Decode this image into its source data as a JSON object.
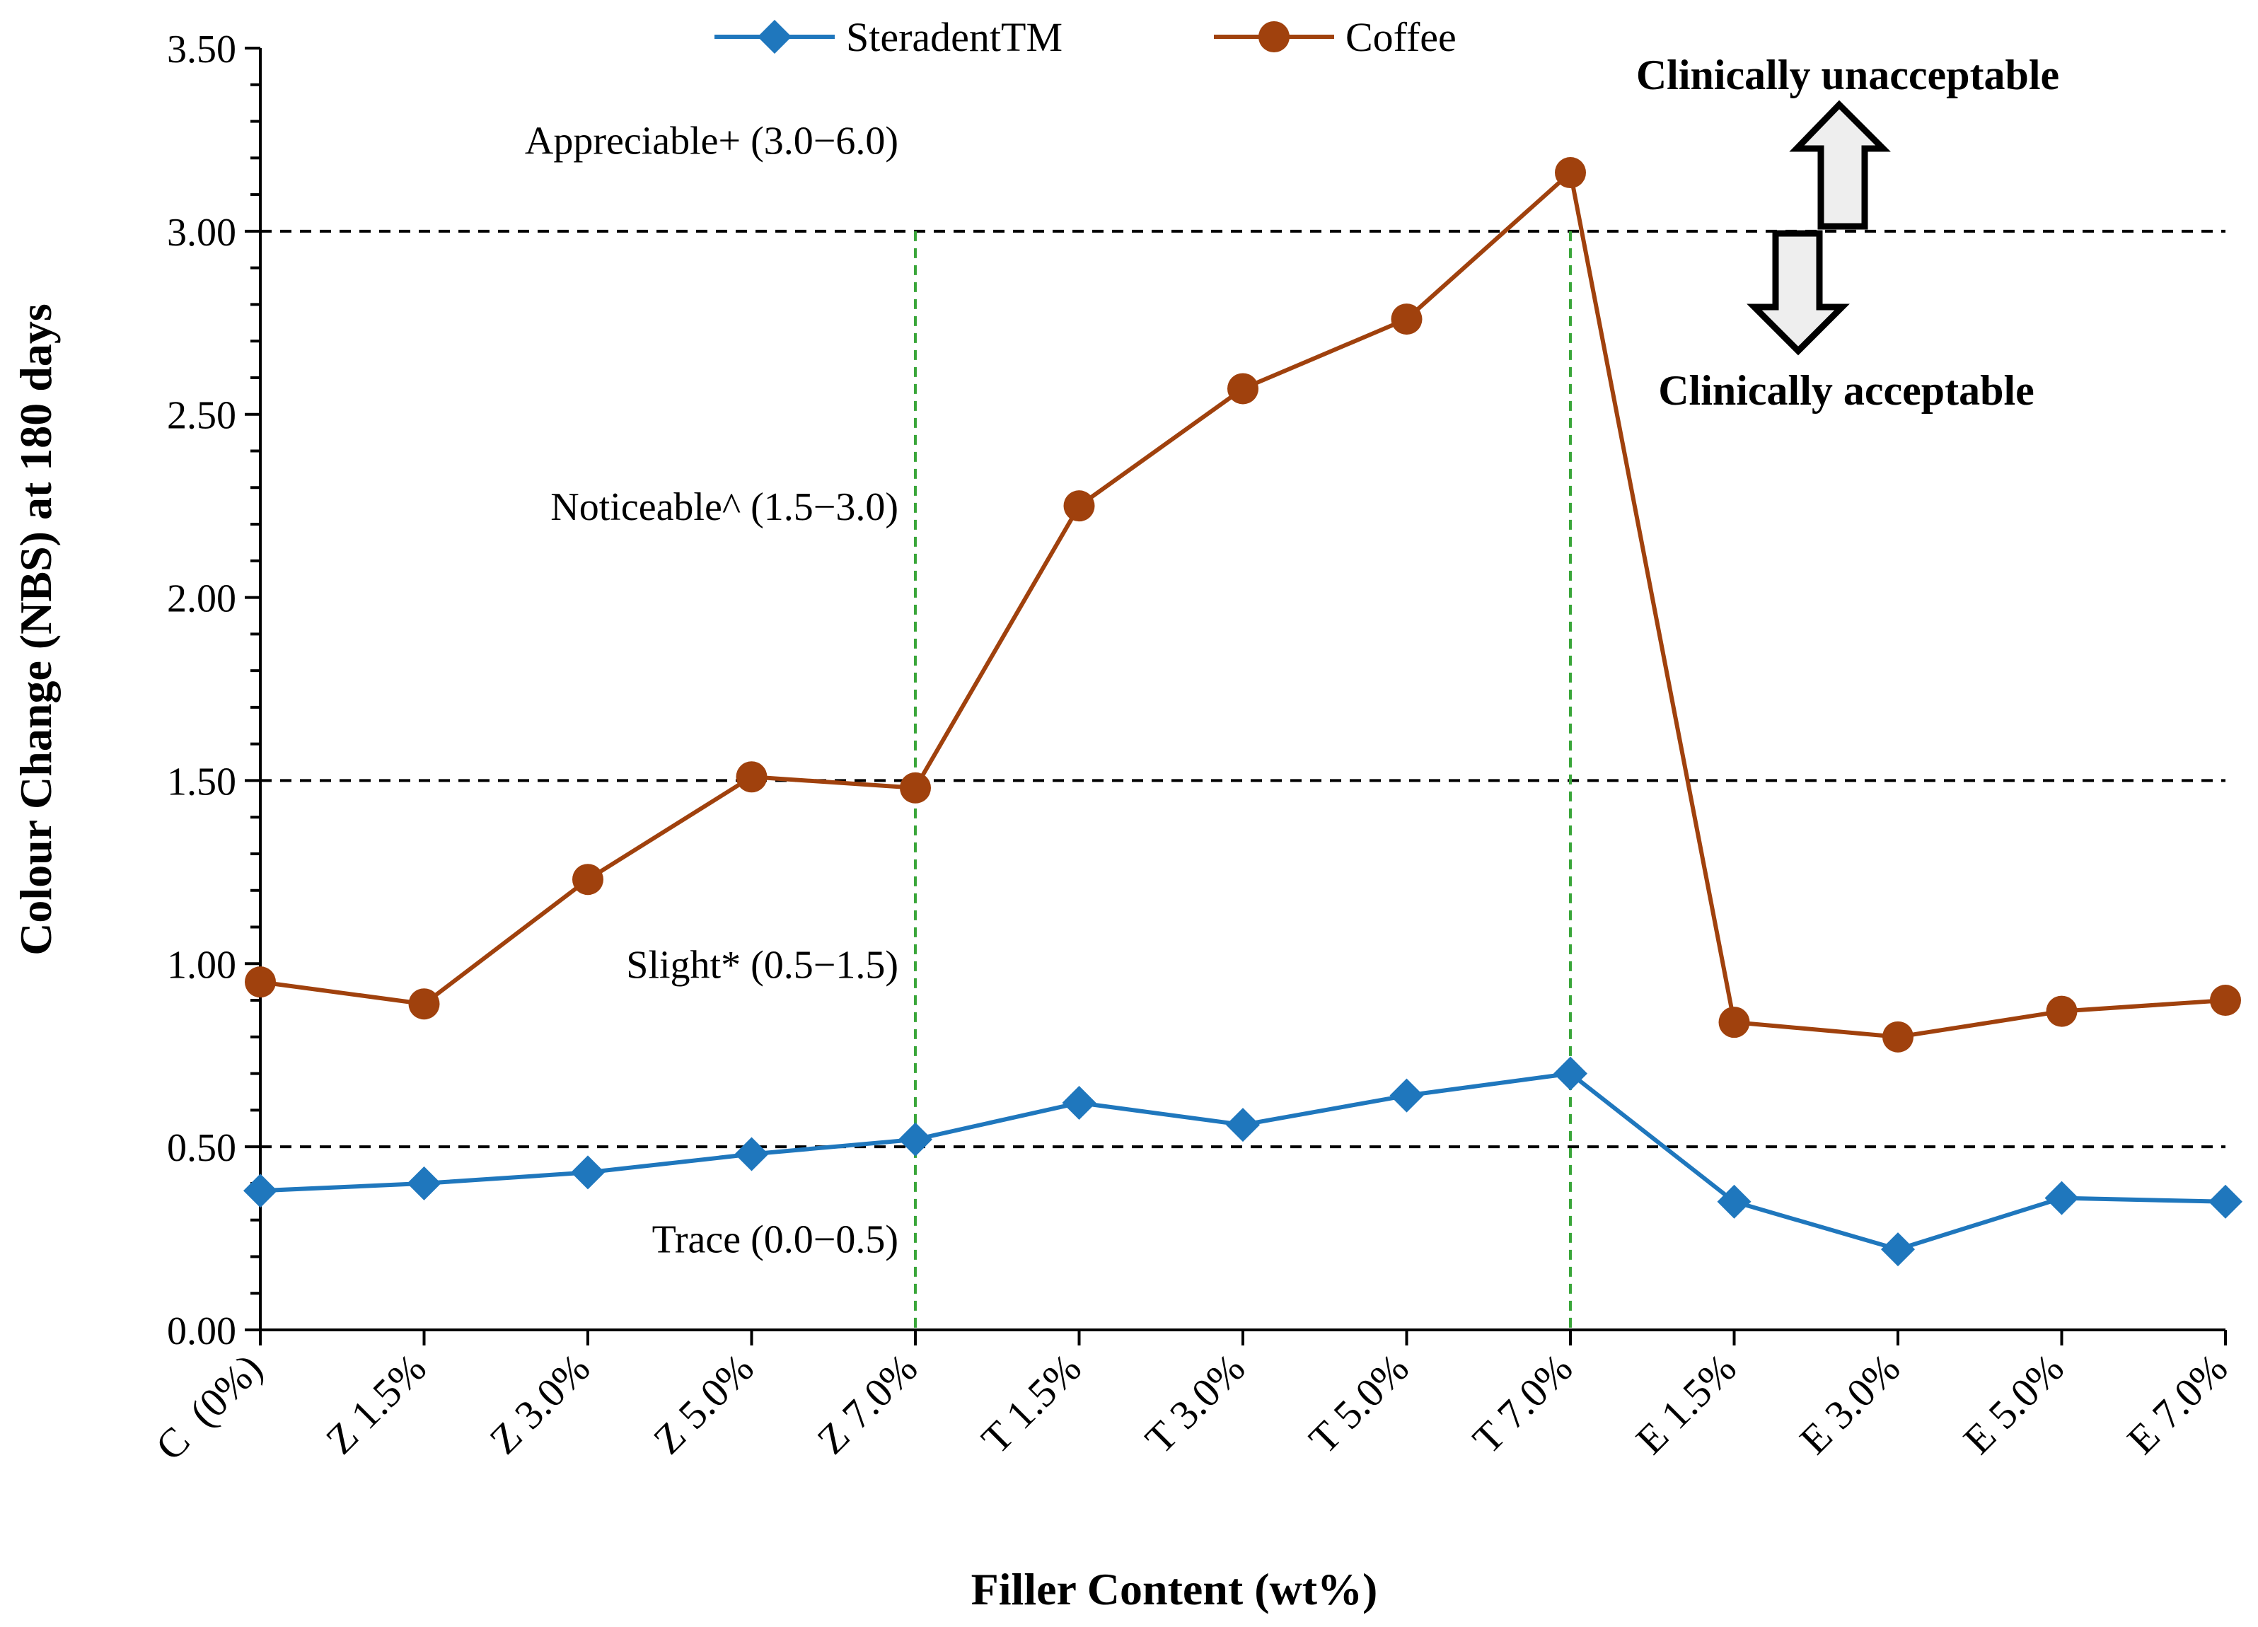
{
  "chart_data": {
    "type": "line",
    "categories": [
      "C (0%)",
      "Z 1.5%",
      "Z 3.0%",
      "Z 5.0%",
      "Z 7.0%",
      "T 1.5%",
      "T 3.0%",
      "T 5.0%",
      "T 7.0%",
      "E 1.5%",
      "E 3.0%",
      "E 5.0%",
      "E 7.0%"
    ],
    "series": [
      {
        "name": "SteradentTM",
        "color": "#1f77bd",
        "marker": "diamond",
        "values": [
          0.38,
          0.4,
          0.43,
          0.48,
          0.52,
          0.62,
          0.56,
          0.64,
          0.7,
          0.35,
          0.22,
          0.36,
          0.35
        ]
      },
      {
        "name": "Coffee",
        "color": "#a0410d",
        "marker": "circle",
        "values": [
          0.95,
          0.89,
          1.23,
          1.51,
          1.48,
          2.25,
          2.57,
          2.76,
          3.16,
          0.84,
          0.8,
          0.87,
          0.9
        ]
      }
    ],
    "xlabel": "Filler Content (wt%)",
    "ylabel": "Colour Change (NBS) at 180 days",
    "ylim": [
      0,
      3.5
    ],
    "yticks": [
      "0.00",
      "0.50",
      "1.00",
      "1.50",
      "2.00",
      "2.50",
      "3.00",
      "3.50"
    ],
    "reference_lines": [
      0.5,
      1.5,
      3.0
    ],
    "separator_categories": [
      "Z 7.0%",
      "T 7.0%"
    ],
    "band_labels": [
      {
        "text": "Trace (0.0−0.5)",
        "value": 0.25
      },
      {
        "text": "Slight* (0.5−1.5)",
        "value": 1.0
      },
      {
        "text": "Noticeable^ (1.5−3.0)",
        "value": 2.25
      },
      {
        "text": "Appreciable+ (3.0−6.0)",
        "value": 3.25
      }
    ],
    "annotations": {
      "unacceptable": "Clinically unacceptable",
      "acceptable": "Clinically acceptable"
    },
    "legend_position": "top-center",
    "grid": false,
    "colors": {
      "reference_line": "#000000",
      "separator_line": "#3aa63a",
      "arrow_fill": "#eeeeee"
    }
  }
}
